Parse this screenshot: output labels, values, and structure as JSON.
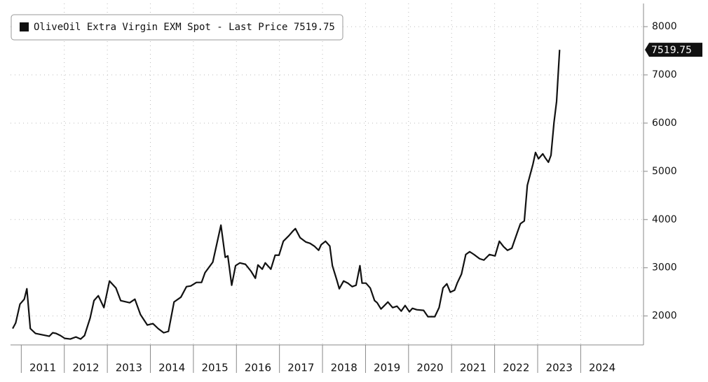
{
  "chart_data": {
    "type": "line",
    "xlim": [
      2010.75,
      2025.46
    ],
    "xticks": [
      2011,
      2012,
      2013,
      2014,
      2015,
      2016,
      2017,
      2018,
      2019,
      2020,
      2021,
      2022,
      2023,
      2024
    ],
    "ylim": [
      1400,
      8480
    ],
    "yticks": [
      2000,
      3000,
      4000,
      5000,
      6000,
      7000,
      8000
    ],
    "grid": true,
    "legend": "top-left",
    "series": [
      {
        "name": "OliveOil Extra Virgin EXM Spot - Last Price 7519.75",
        "color": "#111111",
        "x": [
          2010.8,
          2010.87,
          2010.97,
          2011.07,
          2011.13,
          2011.21,
          2011.33,
          2011.49,
          2011.65,
          2011.73,
          2011.81,
          2011.91,
          2012.01,
          2012.14,
          2012.27,
          2012.38,
          2012.47,
          2012.6,
          2012.69,
          2012.79,
          2012.92,
          2013.05,
          2013.2,
          2013.31,
          2013.52,
          2013.64,
          2013.77,
          2013.93,
          2014.06,
          2014.18,
          2014.31,
          2014.42,
          2014.55,
          2014.71,
          2014.84,
          2014.94,
          2015.07,
          2015.19,
          2015.27,
          2015.45,
          2015.54,
          2015.64,
          2015.74,
          2015.8,
          2015.89,
          2015.98,
          2016.08,
          2016.21,
          2016.34,
          2016.44,
          2016.5,
          2016.6,
          2016.67,
          2016.8,
          2016.9,
          2016.99,
          2017.09,
          2017.22,
          2017.32,
          2017.37,
          2017.48,
          2017.61,
          2017.71,
          2017.81,
          2017.91,
          2017.97,
          2018.07,
          2018.17,
          2018.23,
          2018.33,
          2018.39,
          2018.49,
          2018.59,
          2018.69,
          2018.78,
          2018.87,
          2018.92,
          2019.01,
          2019.11,
          2019.21,
          2019.27,
          2019.36,
          2019.44,
          2019.52,
          2019.63,
          2019.73,
          2019.83,
          2019.92,
          2020.02,
          2020.09,
          2020.19,
          2020.35,
          2020.45,
          2020.61,
          2020.71,
          2020.8,
          2020.89,
          2020.97,
          2021.07,
          2021.13,
          2021.23,
          2021.33,
          2021.42,
          2021.52,
          2021.65,
          2021.75,
          2021.88,
          2022.01,
          2022.11,
          2022.21,
          2022.3,
          2022.4,
          2022.53,
          2022.6,
          2022.69,
          2022.76,
          2022.89,
          2022.95,
          2023.02,
          2023.12,
          2023.18,
          2023.25,
          2023.31,
          2023.38,
          2023.44,
          2023.51
        ],
        "values": [
          1739,
          1855,
          2246,
          2348,
          2565,
          1739,
          1638,
          1609,
          1580,
          1652,
          1638,
          1594,
          1536,
          1522,
          1565,
          1522,
          1594,
          1957,
          2319,
          2420,
          2174,
          2725,
          2580,
          2319,
          2275,
          2348,
          2029,
          1812,
          1841,
          1739,
          1652,
          1681,
          2290,
          2391,
          2609,
          2623,
          2696,
          2696,
          2898,
          3116,
          3478,
          3884,
          3217,
          3246,
          2638,
          3043,
          3101,
          3072,
          2927,
          2782,
          3058,
          2971,
          3101,
          2971,
          3261,
          3261,
          3550,
          3666,
          3768,
          3811,
          3623,
          3536,
          3507,
          3449,
          3362,
          3478,
          3550,
          3449,
          3043,
          2753,
          2565,
          2725,
          2681,
          2609,
          2638,
          3043,
          2681,
          2681,
          2580,
          2319,
          2275,
          2145,
          2217,
          2290,
          2174,
          2203,
          2101,
          2217,
          2087,
          2159,
          2130,
          2116,
          1986,
          1986,
          2174,
          2580,
          2667,
          2493,
          2536,
          2681,
          2869,
          3275,
          3333,
          3275,
          3188,
          3159,
          3275,
          3246,
          3550,
          3435,
          3362,
          3406,
          3739,
          3913,
          3971,
          4710,
          5145,
          5391,
          5261,
          5362,
          5275,
          5188,
          5333,
          6014,
          6449,
          7519.75
        ]
      }
    ]
  }
}
